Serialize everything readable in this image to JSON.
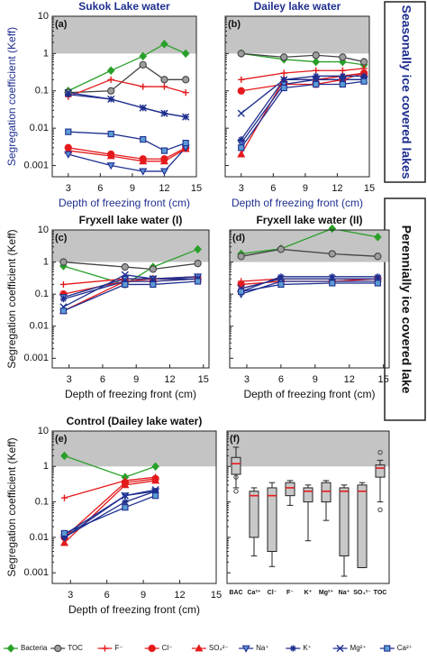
{
  "chart_data": [
    {
      "type": "line",
      "panel_label": "(a)",
      "title": "Sukok Lake water",
      "xlabel": "Depth of freezing front (cm)",
      "ylabel": "Segregation coefficient (Keff)",
      "side_label": "Seasonally ice covered lakes",
      "x": [
        3,
        7,
        10,
        12,
        14
      ],
      "xlim": [
        1.5,
        15
      ],
      "xticks": [
        3,
        6,
        9,
        12,
        15
      ],
      "ylim": [
        0.0005,
        10
      ],
      "yticks": [
        0.001,
        0.01,
        0.1,
        1,
        10
      ],
      "log_y": true,
      "ytick_labels_shown": true,
      "shaded_range": [
        1,
        10
      ],
      "series": [
        {
          "name": "Bacteria",
          "color": "#2aa02a",
          "marker_fill": "#2aa02a",
          "marker": "diamond",
          "values": [
            0.1,
            0.35,
            0.85,
            1.8,
            1.0
          ]
        },
        {
          "name": "TOC",
          "color": "#444444",
          "marker_fill": "#9e9e9e",
          "marker": "circle",
          "values": [
            0.09,
            0.1,
            0.5,
            0.2,
            0.2
          ]
        },
        {
          "name": "F⁻",
          "color": "#e41a1c",
          "marker_fill": "none",
          "marker": "plus",
          "values": [
            0.07,
            0.2,
            0.13,
            0.13,
            0.09
          ]
        },
        {
          "name": "Cl⁻",
          "color": "#e41a1c",
          "marker_fill": "#e41a1c",
          "marker": "circle",
          "values": [
            0.003,
            0.002,
            0.0015,
            0.0015,
            0.003
          ]
        },
        {
          "name": "SO₄²⁻",
          "color": "#e41a1c",
          "marker_fill": "#e41a1c",
          "marker": "triangle",
          "values": [
            0.0025,
            0.0018,
            0.0013,
            0.0013,
            0.0028
          ]
        },
        {
          "name": "Na⁺",
          "color": "#1f2f8f",
          "marker_fill": "#5b8fd6",
          "marker": "triangle_down",
          "values": [
            0.002,
            0.001,
            0.0007,
            0.0007,
            0.003
          ]
        },
        {
          "name": "K⁺",
          "color": "#1f2f8f",
          "marker_fill": "none",
          "marker": "star",
          "values": [
            0.08,
            0.06,
            0.035,
            0.025,
            0.02
          ]
        },
        {
          "name": "Mg²⁺",
          "color": "#1f2f8f",
          "marker_fill": "none",
          "marker": "x",
          "values": [
            0.09,
            0.06,
            0.035,
            0.025,
            0.02
          ]
        },
        {
          "name": "Ca²⁺",
          "color": "#1f2f8f",
          "marker_fill": "#5b9bd5",
          "marker": "square",
          "values": [
            0.008,
            0.007,
            0.005,
            0.0025,
            0.004
          ]
        }
      ]
    },
    {
      "type": "line",
      "panel_label": "(b)",
      "title": "Dailey lake water",
      "xlabel": "Depth of freezing front (cm)",
      "x": [
        3,
        7,
        10,
        12.5,
        14.5
      ],
      "xlim": [
        1.5,
        15
      ],
      "xticks": [
        3,
        6,
        9,
        12,
        15
      ],
      "ylim": [
        0.0005,
        10
      ],
      "yticks": [
        0.001,
        0.01,
        0.1,
        1,
        10
      ],
      "log_y": true,
      "ytick_labels_shown": false,
      "shaded_range": [
        1,
        10
      ],
      "series": [
        {
          "name": "Bacteria",
          "color": "#2aa02a",
          "marker_fill": "#2aa02a",
          "marker": "diamond",
          "values": [
            1.0,
            0.7,
            0.6,
            0.6,
            0.5
          ]
        },
        {
          "name": "TOC",
          "color": "#444444",
          "marker_fill": "#9e9e9e",
          "marker": "circle",
          "values": [
            1.0,
            0.8,
            0.9,
            0.8,
            0.6
          ]
        },
        {
          "name": "F⁻",
          "color": "#e41a1c",
          "marker_fill": "none",
          "marker": "plus",
          "values": [
            0.2,
            0.3,
            0.35,
            0.35,
            0.4
          ]
        },
        {
          "name": "Cl⁻",
          "color": "#e41a1c",
          "marker_fill": "#e41a1c",
          "marker": "circle",
          "values": [
            0.1,
            0.15,
            0.15,
            0.2,
            0.3
          ]
        },
        {
          "name": "SO₄²⁻",
          "color": "#e41a1c",
          "marker_fill": "#e41a1c",
          "marker": "triangle",
          "values": [
            0.002,
            0.2,
            0.2,
            0.25,
            0.3
          ]
        },
        {
          "name": "Na⁺",
          "color": "#1f2f8f",
          "marker_fill": "#5b8fd6",
          "marker": "triangle_down",
          "values": [
            0.004,
            0.15,
            0.2,
            0.2,
            0.2
          ]
        },
        {
          "name": "K⁺",
          "color": "#1f2f8f",
          "marker_fill": "none",
          "marker": "star",
          "values": [
            0.005,
            0.2,
            0.25,
            0.25,
            0.25
          ]
        },
        {
          "name": "Mg²⁺",
          "color": "#1f2f8f",
          "marker_fill": "none",
          "marker": "x",
          "values": [
            0.025,
            0.2,
            0.2,
            0.2,
            0.2
          ]
        },
        {
          "name": "Ca²⁺",
          "color": "#1f2f8f",
          "marker_fill": "#5b9bd5",
          "marker": "square",
          "values": [
            0.003,
            0.12,
            0.15,
            0.15,
            0.18
          ]
        }
      ]
    },
    {
      "type": "line",
      "panel_label": "(c)",
      "title": "Fryxell lake water (I)",
      "xlabel": "Depth of freezing front (cm)",
      "ylabel": "Segregation coefficient (Keff)",
      "side_label": "Perennially ice covered lake",
      "x": [
        2.5,
        8,
        10.5,
        14.5
      ],
      "xlim": [
        1.5,
        15.5
      ],
      "xticks": [
        3,
        6,
        9,
        12,
        15
      ],
      "ylim": [
        0.0005,
        10
      ],
      "yticks": [
        0.001,
        0.01,
        0.1,
        1,
        10
      ],
      "log_y": true,
      "ytick_labels_shown": true,
      "shaded_range": [
        1,
        10
      ],
      "series": [
        {
          "name": "Bacteria",
          "color": "#2aa02a",
          "marker_fill": "#2aa02a",
          "marker": "diamond",
          "values": [
            0.75,
            0.2,
            0.7,
            2.5
          ]
        },
        {
          "name": "TOC",
          "color": "#444444",
          "marker_fill": "#9e9e9e",
          "marker": "circle",
          "values": [
            1.0,
            0.7,
            0.6,
            0.9
          ]
        },
        {
          "name": "F⁻",
          "color": "#e41a1c",
          "marker_fill": "none",
          "marker": "plus",
          "values": [
            0.2,
            0.3,
            0.3,
            0.35
          ]
        },
        {
          "name": "Cl⁻",
          "color": "#e41a1c",
          "marker_fill": "#e41a1c",
          "marker": "circle",
          "values": [
            0.1,
            0.25,
            0.25,
            0.3
          ]
        },
        {
          "name": "SO₄²⁻",
          "color": "#e41a1c",
          "marker_fill": "#e41a1c",
          "marker": "triangle",
          "values": [
            0.03,
            0.25,
            0.3,
            0.3
          ]
        },
        {
          "name": "Na⁺",
          "color": "#1f2f8f",
          "marker_fill": "#5b8fd6",
          "marker": "triangle_down",
          "values": [
            0.08,
            0.3,
            0.3,
            0.35
          ]
        },
        {
          "name": "K⁺",
          "color": "#1f2f8f",
          "marker_fill": "none",
          "marker": "star",
          "values": [
            0.07,
            0.25,
            0.25,
            0.3
          ]
        },
        {
          "name": "Mg²⁺",
          "color": "#1f2f8f",
          "marker_fill": "none",
          "marker": "x",
          "values": [
            0.04,
            0.4,
            0.3,
            0.3
          ]
        },
        {
          "name": "Ca²⁺",
          "color": "#1f2f8f",
          "marker_fill": "#5b9bd5",
          "marker": "square",
          "values": [
            0.03,
            0.2,
            0.2,
            0.25
          ]
        }
      ]
    },
    {
      "type": "line",
      "panel_label": "(d)",
      "title": "Fryxell lake water (II)",
      "xlabel": "Depth of freezing front (cm)",
      "x": [
        2.5,
        6,
        10.5,
        14.5
      ],
      "xlim": [
        1.5,
        15.5
      ],
      "xticks": [
        3,
        6,
        9,
        12,
        15
      ],
      "ylim": [
        0.0005,
        10
      ],
      "yticks": [
        0.001,
        0.01,
        0.1,
        1,
        10
      ],
      "log_y": true,
      "ytick_labels_shown": false,
      "shaded_range": [
        1,
        10
      ],
      "series": [
        {
          "name": "Bacteria",
          "color": "#2aa02a",
          "marker_fill": "#2aa02a",
          "marker": "diamond",
          "values": [
            1.8,
            2.6,
            11,
            6
          ]
        },
        {
          "name": "TOC",
          "color": "#444444",
          "marker_fill": "#9e9e9e",
          "marker": "circle",
          "values": [
            1.5,
            2.5,
            1.8,
            1.5
          ]
        },
        {
          "name": "F⁻",
          "color": "#e41a1c",
          "marker_fill": "none",
          "marker": "plus",
          "values": [
            0.25,
            0.3,
            0.3,
            0.3
          ]
        },
        {
          "name": "Cl⁻",
          "color": "#e41a1c",
          "marker_fill": "#e41a1c",
          "marker": "circle",
          "values": [
            0.2,
            0.25,
            0.25,
            0.3
          ]
        },
        {
          "name": "SO₄²⁻",
          "color": "#e41a1c",
          "marker_fill": "#e41a1c",
          "marker": "triangle",
          "values": [
            0.15,
            0.3,
            0.3,
            0.3
          ]
        },
        {
          "name": "Na⁺",
          "color": "#1f2f8f",
          "marker_fill": "#5b8fd6",
          "marker": "triangle_down",
          "values": [
            0.1,
            0.25,
            0.25,
            0.25
          ]
        },
        {
          "name": "K⁺",
          "color": "#1f2f8f",
          "marker_fill": "none",
          "marker": "star",
          "values": [
            0.12,
            0.35,
            0.35,
            0.35
          ]
        },
        {
          "name": "Mg²⁺",
          "color": "#1f2f8f",
          "marker_fill": "none",
          "marker": "x",
          "values": [
            0.15,
            0.3,
            0.3,
            0.3
          ]
        },
        {
          "name": "Ca²⁺",
          "color": "#1f2f8f",
          "marker_fill": "#5b9bd5",
          "marker": "square",
          "values": [
            0.12,
            0.2,
            0.22,
            0.22
          ]
        }
      ]
    },
    {
      "type": "line",
      "panel_label": "(e)",
      "title": "Control (Dailey lake water)",
      "xlabel": "Depth of freezing front (cm)",
      "ylabel": "Segregation coefficient (Keff)",
      "x": [
        2.5,
        7.5,
        10
      ],
      "xlim": [
        1.5,
        15
      ],
      "xticks": [
        3,
        6,
        9,
        12,
        15
      ],
      "ylim": [
        0.0005,
        10
      ],
      "yticks": [
        0.001,
        0.01,
        0.1,
        1,
        10
      ],
      "log_y": true,
      "ytick_labels_shown": true,
      "shaded_range": [
        1,
        10
      ],
      "series": [
        {
          "name": "Bacteria",
          "color": "#2aa02a",
          "marker_fill": "#2aa02a",
          "marker": "diamond",
          "values": [
            2.0,
            0.5,
            1.0
          ]
        },
        {
          "name": "F⁻",
          "color": "#e41a1c",
          "marker_fill": "none",
          "marker": "plus",
          "values": [
            0.13,
            0.4,
            0.5
          ]
        },
        {
          "name": "Cl⁻",
          "color": "#e41a1c",
          "marker_fill": "#e41a1c",
          "marker": "circle",
          "values": [
            0.01,
            0.35,
            0.45
          ]
        },
        {
          "name": "SO₄²⁻",
          "color": "#e41a1c",
          "marker_fill": "#e41a1c",
          "marker": "triangle",
          "values": [
            0.007,
            0.3,
            0.4
          ]
        },
        {
          "name": "Na⁺",
          "color": "#1f2f8f",
          "marker_fill": "#5b8fd6",
          "marker": "triangle_down",
          "values": [
            0.01,
            0.15,
            0.2
          ]
        },
        {
          "name": "K⁺",
          "color": "#1f2f8f",
          "marker_fill": "none",
          "marker": "star",
          "values": [
            0.01,
            0.1,
            0.2
          ]
        },
        {
          "name": "Mg²⁺",
          "color": "#1f2f8f",
          "marker_fill": "none",
          "marker": "x",
          "values": [
            0.012,
            0.15,
            0.22
          ]
        },
        {
          "name": "Ca²⁺",
          "color": "#1f2f8f",
          "marker_fill": "#5b9bd5",
          "marker": "square",
          "values": [
            0.013,
            0.07,
            0.15
          ]
        }
      ]
    },
    {
      "type": "box",
      "panel_label": "(f)",
      "categories": [
        "BAC",
        "Ca²⁺",
        "Cl⁻",
        "F⁻",
        "K⁺",
        "Mg²⁺",
        "Na⁺",
        "SO₄²⁻",
        "TOC"
      ],
      "low": [
        0.25,
        0.003,
        0.0015,
        0.08,
        0.008,
        0.03,
        0.0008,
        0.0014,
        0.1
      ],
      "q1": [
        0.6,
        0.01,
        0.004,
        0.15,
        0.1,
        0.1,
        0.003,
        0.0014,
        0.5
      ],
      "median": [
        1.2,
        0.15,
        0.15,
        0.25,
        0.2,
        0.2,
        0.2,
        0.2,
        0.9
      ],
      "q3": [
        1.8,
        0.2,
        0.25,
        0.35,
        0.25,
        0.35,
        0.25,
        0.3,
        1.1
      ],
      "high": [
        3.5,
        0.25,
        0.35,
        0.4,
        0.3,
        0.4,
        0.3,
        0.35,
        1.5
      ],
      "outliers": [
        [
          0.2,
          0.5
        ],
        [],
        [],
        [],
        [],
        [],
        [],
        [],
        [
          0.06,
          2.5
        ]
      ],
      "box_color": "#c8c8c8",
      "median_color": "#e41a1c",
      "ylim": [
        0.0005,
        10
      ],
      "yticks": [
        0.001,
        0.01,
        0.1,
        1,
        10
      ],
      "log_y": true,
      "ytick_labels_shown": false,
      "shaded_range": [
        1,
        10
      ]
    }
  ]
}
